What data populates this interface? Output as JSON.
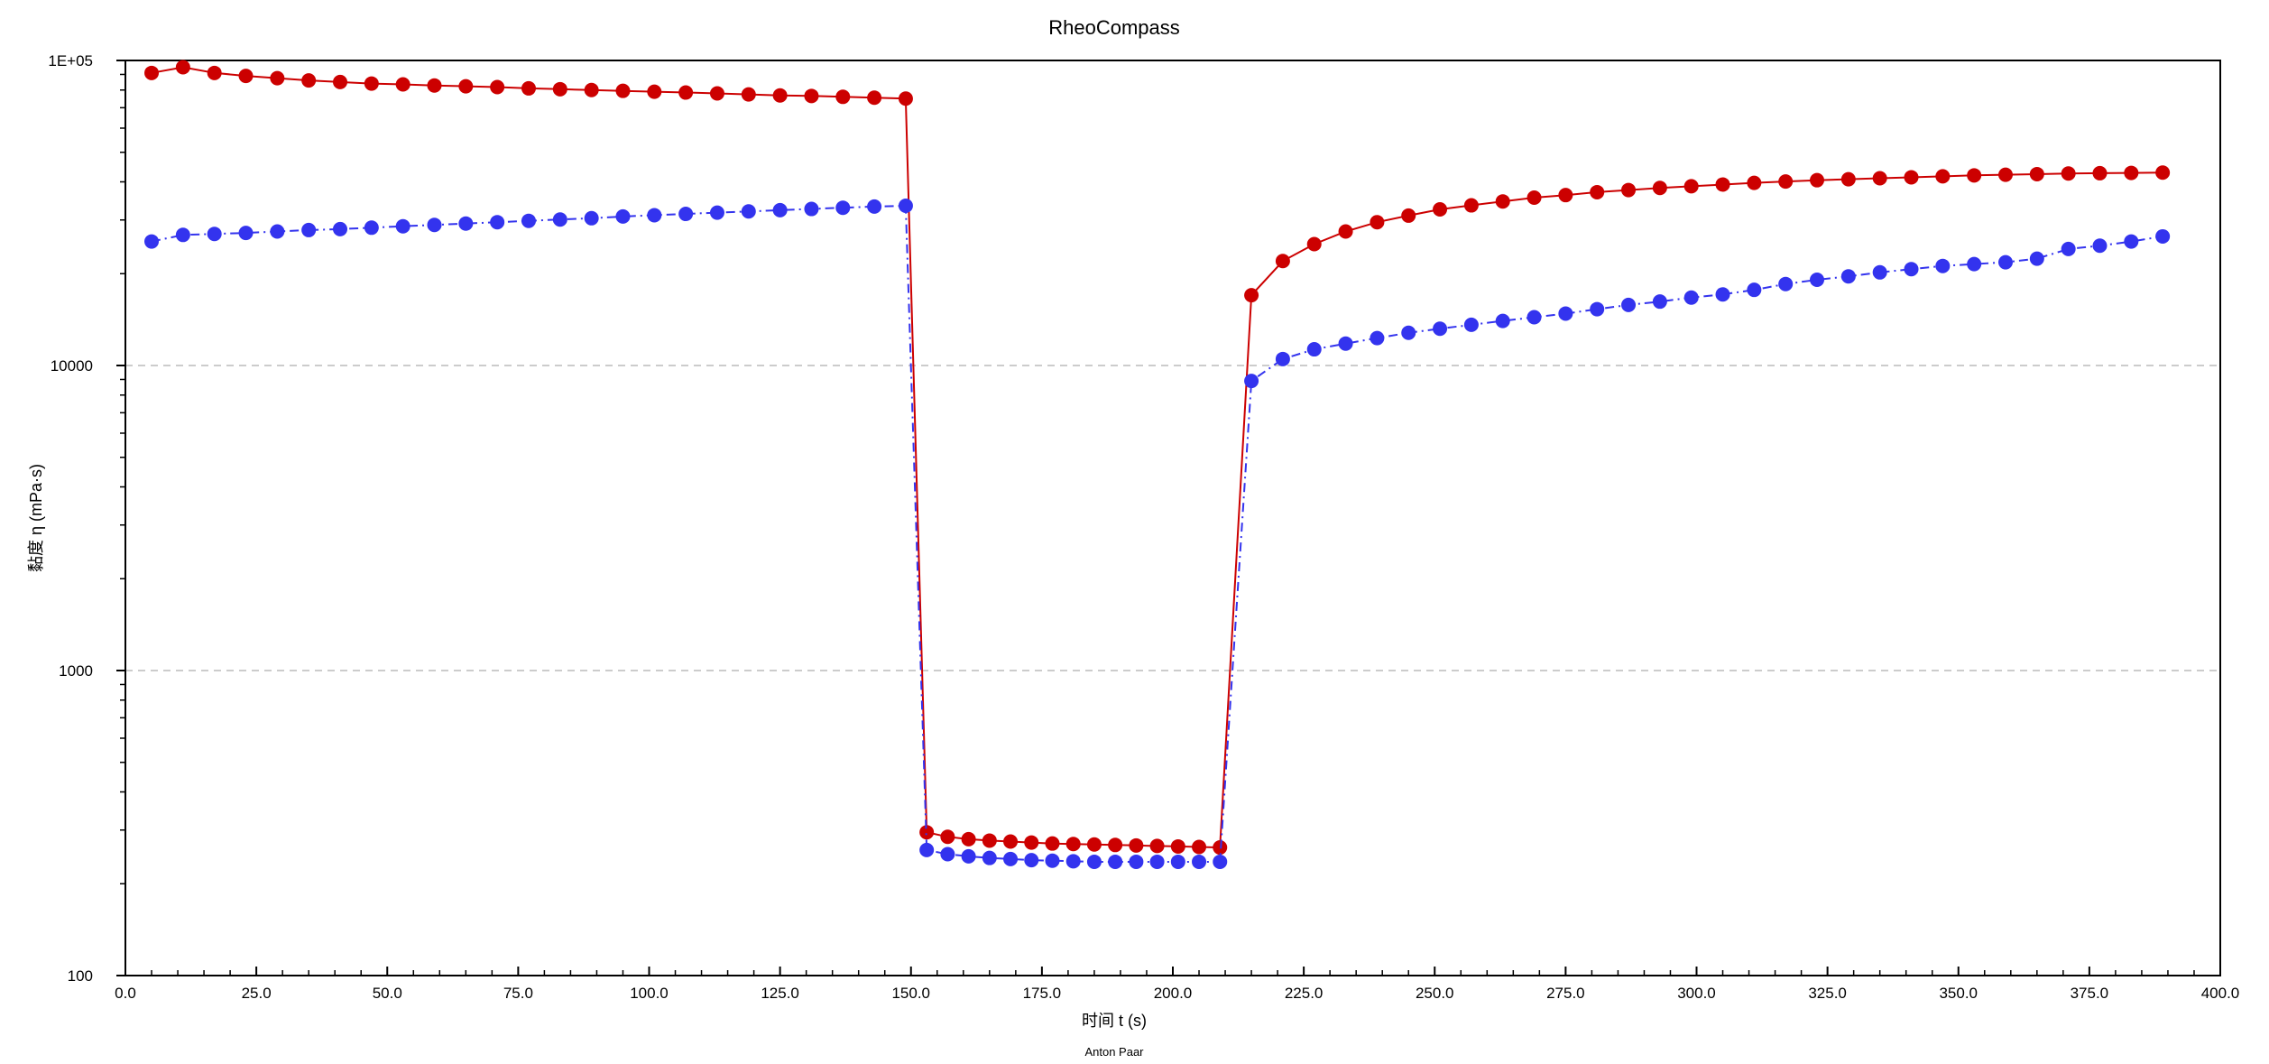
{
  "chart_data": {
    "type": "line",
    "title": "RheoCompass",
    "xlabel": "时间 t (s)",
    "ylabel": "黏度 η (mPa·s)",
    "footer": "Anton Paar",
    "xlim": [
      0,
      400
    ],
    "ylim": [
      100,
      100000
    ],
    "y_scale": "log",
    "grid": "y-major-dashed",
    "x_tick_labels": [
      "0.0",
      "25.0",
      "50.0",
      "75.0",
      "100.0",
      "125.0",
      "150.0",
      "175.0",
      "200.0",
      "225.0",
      "250.0",
      "275.0",
      "300.0",
      "325.0",
      "350.0",
      "375.0",
      "400.0"
    ],
    "x_ticks": [
      0,
      25,
      50,
      75,
      100,
      125,
      150,
      175,
      200,
      225,
      250,
      275,
      300,
      325,
      350,
      375,
      400
    ],
    "y_tick_labels": [
      "100",
      "1000",
      "10000",
      "1E+05"
    ],
    "y_ticks": [
      100,
      1000,
      10000,
      100000
    ],
    "series": [
      {
        "color": "#cc0000",
        "line_style": "solid",
        "x": [
          5,
          11,
          17,
          23,
          29,
          35,
          41,
          47,
          53,
          59,
          65,
          71,
          77,
          83,
          89,
          95,
          101,
          107,
          113,
          119,
          125,
          131,
          137,
          143,
          149,
          153,
          157,
          161,
          165,
          169,
          173,
          177,
          181,
          185,
          189,
          193,
          197,
          201,
          205,
          209,
          215,
          221,
          227,
          233,
          239,
          245,
          251,
          257,
          263,
          269,
          275,
          281,
          287,
          293,
          299,
          305,
          311,
          317,
          323,
          329,
          335,
          341,
          347,
          353,
          359,
          365,
          371,
          377,
          383,
          389
        ],
        "values": [
          91000,
          95000,
          91000,
          89000,
          87500,
          86000,
          85000,
          84000,
          83500,
          82800,
          82300,
          81800,
          81000,
          80500,
          80000,
          79500,
          79000,
          78500,
          78000,
          77400,
          76800,
          76500,
          76000,
          75500,
          75000,
          295,
          285,
          280,
          277,
          275,
          273,
          271,
          270,
          269,
          268,
          267,
          266,
          265,
          264,
          263,
          17000,
          22000,
          25000,
          27500,
          29500,
          31000,
          32500,
          33500,
          34500,
          35500,
          36200,
          37000,
          37600,
          38200,
          38700,
          39200,
          39700,
          40100,
          40500,
          40800,
          41100,
          41400,
          41700,
          42000,
          42200,
          42400,
          42600,
          42700,
          42800,
          42900
        ]
      },
      {
        "color": "#3333ee",
        "line_style": "dash-dot",
        "x": [
          5,
          11,
          17,
          23,
          29,
          35,
          41,
          47,
          53,
          59,
          65,
          71,
          77,
          83,
          89,
          95,
          101,
          107,
          113,
          119,
          125,
          131,
          137,
          143,
          149,
          153,
          157,
          161,
          165,
          169,
          173,
          177,
          181,
          185,
          189,
          193,
          197,
          201,
          205,
          209,
          215,
          221,
          227,
          233,
          239,
          245,
          251,
          257,
          263,
          269,
          275,
          281,
          287,
          293,
          299,
          305,
          311,
          317,
          323,
          329,
          335,
          341,
          347,
          353,
          359,
          365,
          371,
          377,
          383,
          389
        ],
        "values": [
          25500,
          26800,
          27000,
          27200,
          27500,
          27800,
          28000,
          28300,
          28600,
          28900,
          29200,
          29500,
          29800,
          30100,
          30400,
          30800,
          31100,
          31400,
          31700,
          32000,
          32300,
          32600,
          32900,
          33200,
          33400,
          258,
          250,
          246,
          243,
          241,
          239,
          238,
          237,
          236,
          236,
          236,
          236,
          236,
          236,
          236,
          8900,
          10500,
          11300,
          11800,
          12300,
          12800,
          13200,
          13600,
          14000,
          14400,
          14800,
          15300,
          15800,
          16200,
          16700,
          17100,
          17700,
          18500,
          19100,
          19600,
          20200,
          20700,
          21200,
          21500,
          21800,
          22400,
          24100,
          24700,
          25500,
          26500
        ]
      }
    ]
  }
}
